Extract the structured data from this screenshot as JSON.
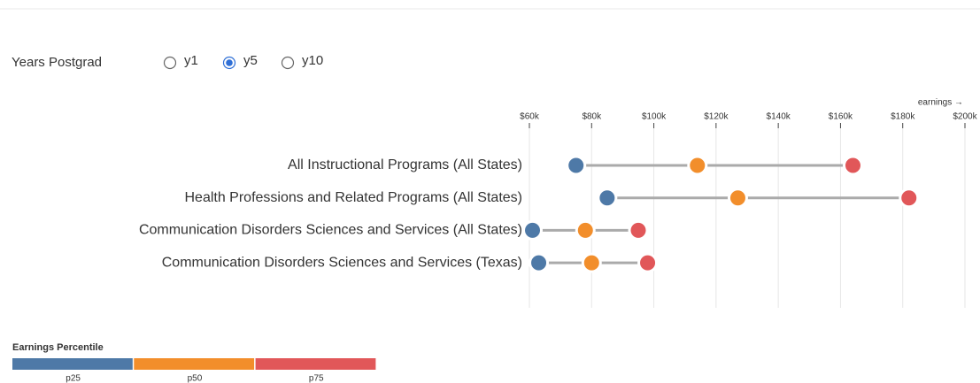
{
  "controls": {
    "label": "Years Postgrad",
    "options": [
      "y1",
      "y5",
      "y10"
    ],
    "selected": "y5"
  },
  "chart_data": {
    "type": "dumbbell",
    "x_label": "earnings →",
    "categories": [
      "All Instructional Programs (All States)",
      "Health Professions and Related Programs (All States)",
      "Communication Disorders Sciences and Services (All States)",
      "Communication Disorders Sciences and Services (Texas)"
    ],
    "series": [
      {
        "name": "p25",
        "color": "#4e79a7",
        "values": [
          75000,
          85000,
          61000,
          63000
        ]
      },
      {
        "name": "p50",
        "color": "#f28e2b",
        "values": [
          114000,
          127000,
          78000,
          80000
        ]
      },
      {
        "name": "p75",
        "color": "#e15759",
        "values": [
          164000,
          182000,
          95000,
          98000
        ]
      }
    ],
    "xlim": [
      60000,
      200000
    ],
    "xticks": [
      {
        "value": 60000,
        "label": "$60k"
      },
      {
        "value": 80000,
        "label": "$80k"
      },
      {
        "value": 100000,
        "label": "$100k"
      },
      {
        "value": 120000,
        "label": "$120k"
      },
      {
        "value": 140000,
        "label": "$140k"
      },
      {
        "value": 160000,
        "label": "$160k"
      },
      {
        "value": 180000,
        "label": "$180k"
      },
      {
        "value": 200000,
        "label": "$200k"
      }
    ],
    "grid": true,
    "legend_title": "Earnings Percentile"
  }
}
